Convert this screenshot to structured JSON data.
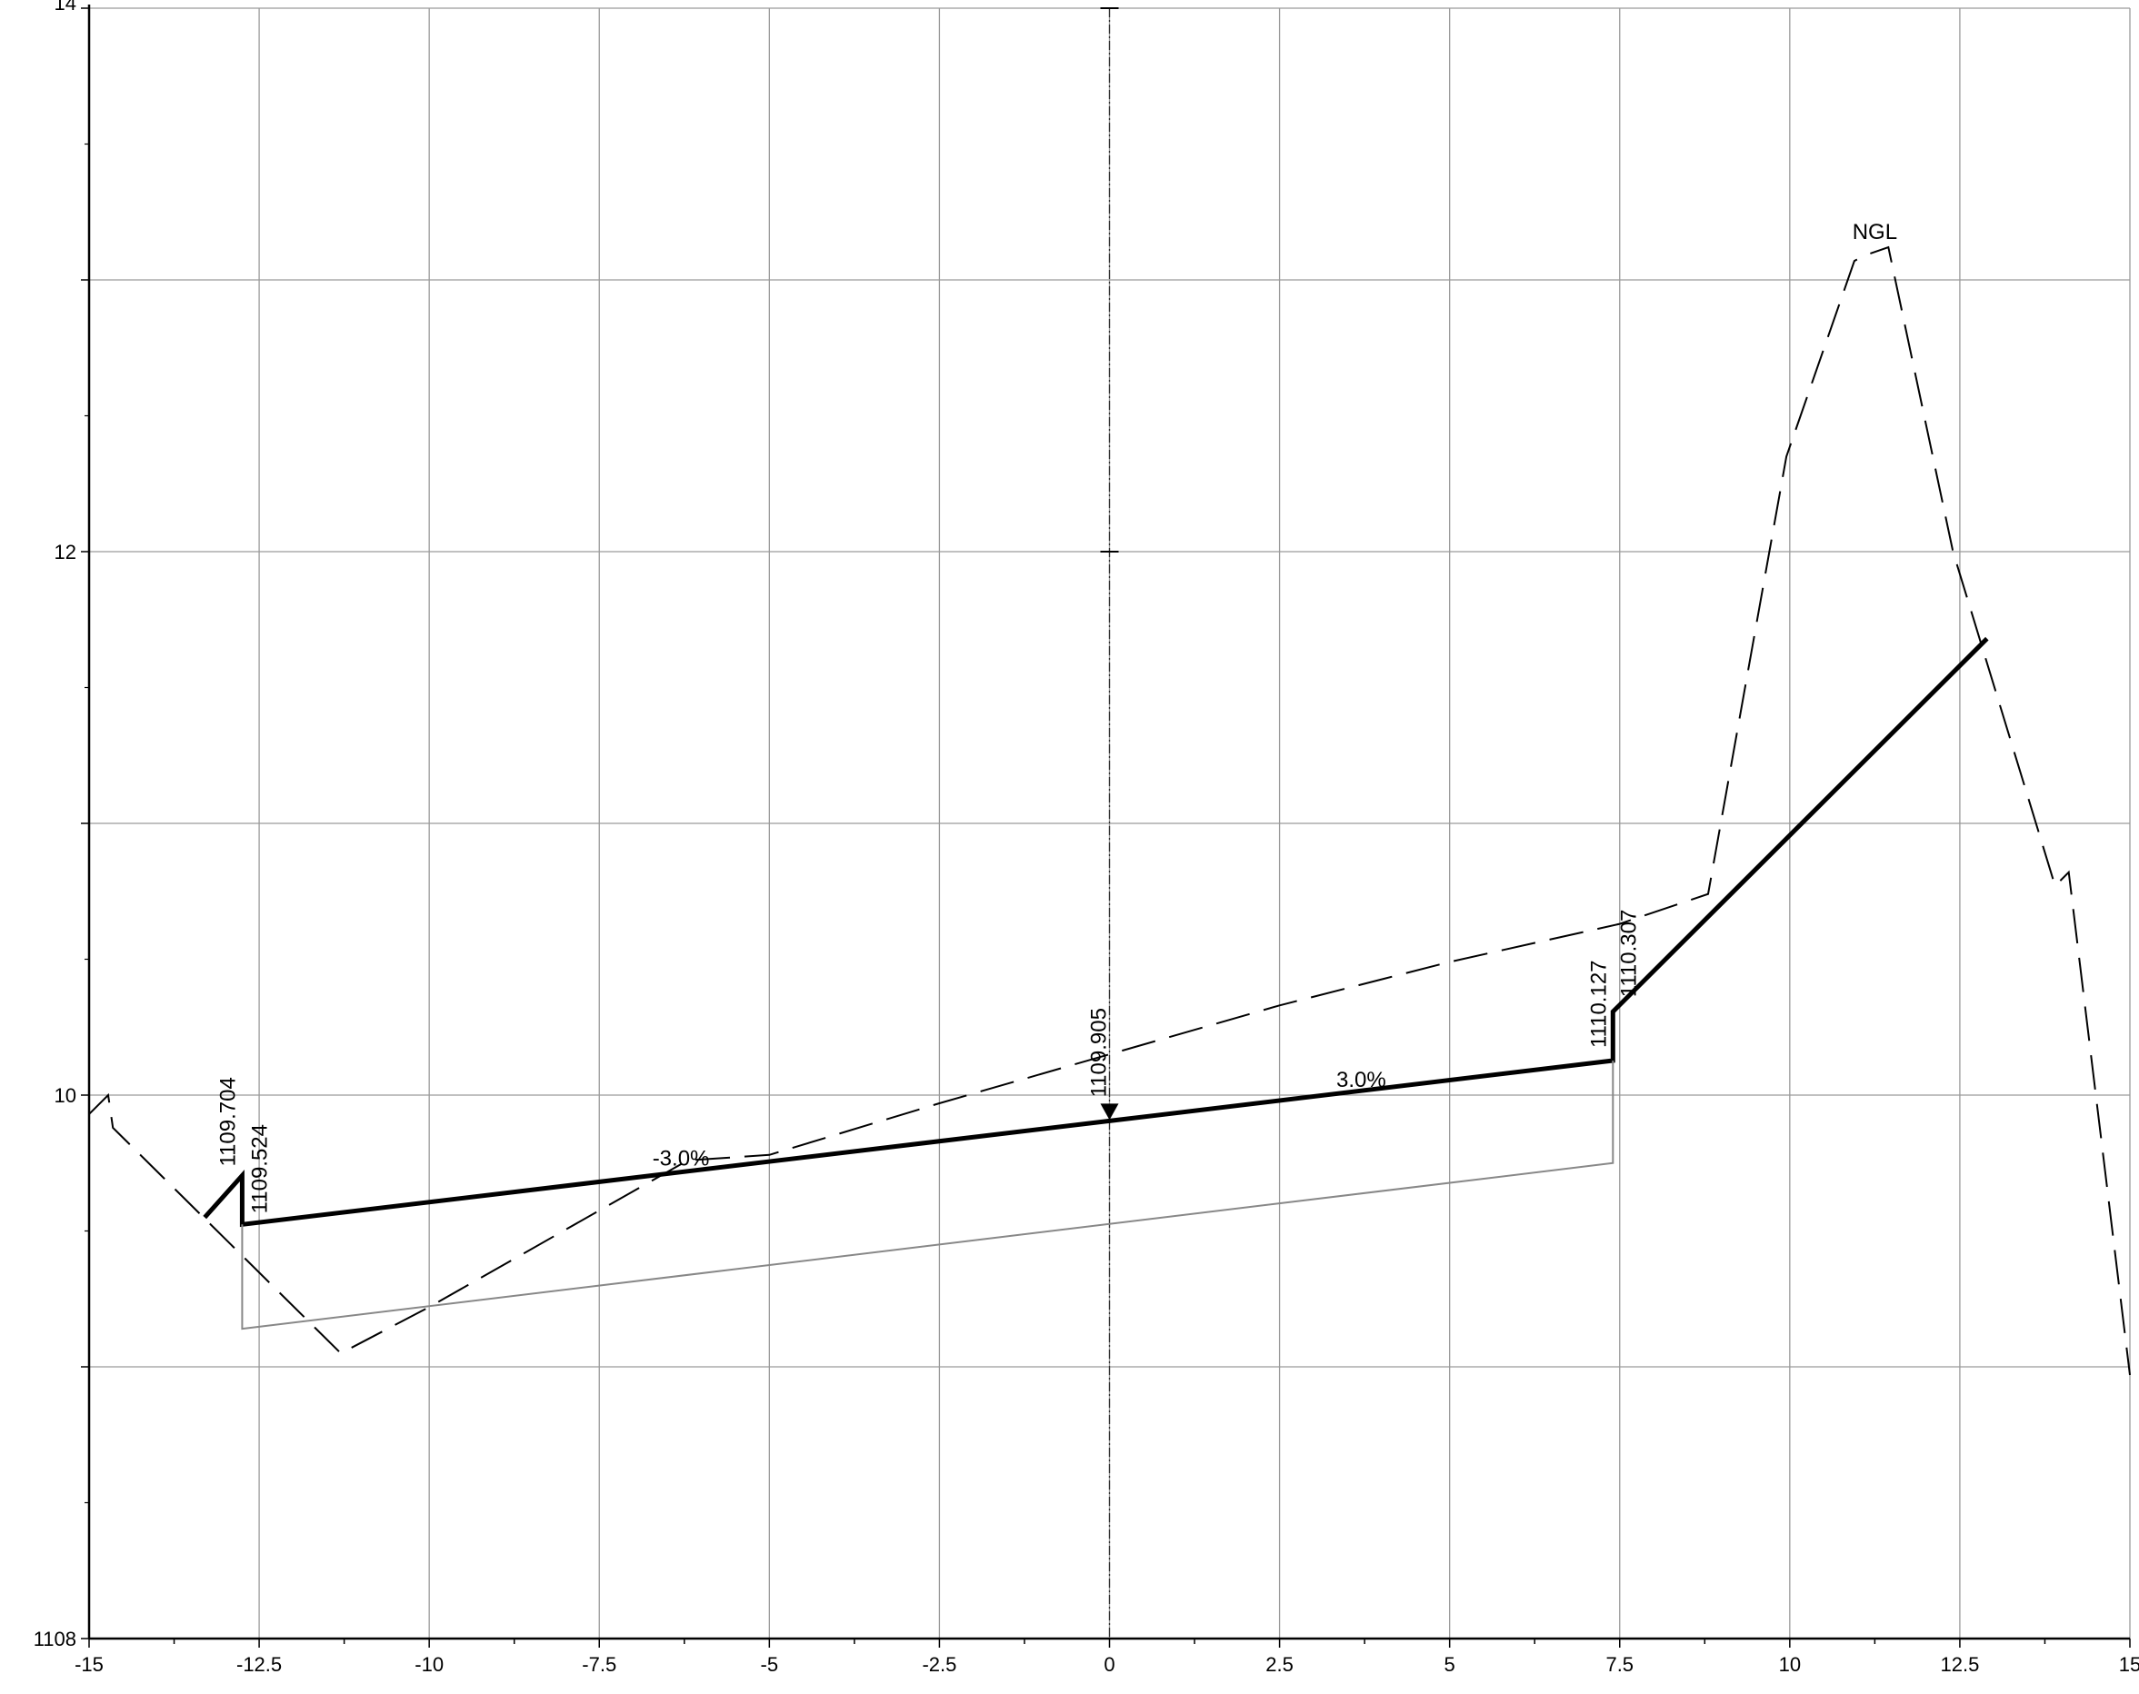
{
  "chart_data": {
    "type": "line",
    "title": "",
    "xlabel": "",
    "ylabel": "",
    "xlim": [
      -15,
      15
    ],
    "ylim": [
      1108,
      1114
    ],
    "x_ticks": [
      -15,
      -12.5,
      -10,
      -7.5,
      -5,
      -2.5,
      0,
      2.5,
      5,
      7.5,
      10,
      12.5,
      15
    ],
    "x_tick_labels": [
      "-15",
      "-12.5",
      "-10",
      "-7.5",
      "-5",
      "-2.5",
      "0",
      "2.5",
      "5",
      "7.5",
      "10",
      "12.5",
      "15"
    ],
    "y_ticks": [
      1108,
      1109,
      1110,
      1111,
      1112,
      1113,
      1114
    ],
    "y_tick_labels": [
      {
        "value": 1108,
        "label": "1108"
      },
      {
        "value": 1110,
        "label": "10"
      },
      {
        "value": 1112,
        "label": "12"
      },
      {
        "value": 1114,
        "label": "14"
      }
    ],
    "grid": true,
    "series": [
      {
        "name": "NGL",
        "style": "dashed",
        "color": "#000000",
        "points": [
          [
            -15,
            1109.93
          ],
          [
            -14.72,
            1110.0
          ],
          [
            -14.65,
            1109.88
          ],
          [
            -11.3,
            1109.05
          ],
          [
            -10.0,
            1109.22
          ],
          [
            -6.2,
            1109.76
          ],
          [
            -5.0,
            1109.78
          ],
          [
            -2.5,
            1109.97
          ],
          [
            0.0,
            1110.15
          ],
          [
            2.5,
            1110.33
          ],
          [
            5.0,
            1110.49
          ],
          [
            7.5,
            1110.63
          ],
          [
            8.8,
            1110.74
          ],
          [
            9.95,
            1112.35
          ],
          [
            10.95,
            1113.07
          ],
          [
            11.1,
            1113.09
          ],
          [
            11.45,
            1113.12
          ],
          [
            12.4,
            1112.0
          ],
          [
            13.9,
            1110.77
          ],
          [
            14.1,
            1110.82
          ],
          [
            15.0,
            1108.97
          ]
        ]
      },
      {
        "name": "",
        "style": "solid-thick",
        "color": "#000000",
        "points": [
          [
            -13.3,
            1109.55
          ],
          [
            -12.75,
            1109.704
          ],
          [
            -12.75,
            1109.524
          ],
          [
            0.0,
            1109.905
          ],
          [
            7.4,
            1110.127
          ],
          [
            7.4,
            1110.307
          ],
          [
            12.9,
            1111.68
          ]
        ]
      },
      {
        "name": "",
        "style": "solid-thin",
        "color": "#888888",
        "points": [
          [
            -12.75,
            1109.524
          ],
          [
            -12.75,
            1109.14
          ],
          [
            7.4,
            1109.75
          ],
          [
            7.4,
            1110.127
          ]
        ]
      }
    ],
    "centerline": {
      "x": 0,
      "style": "dash-dot"
    },
    "annotations": [
      {
        "text": "1109.704",
        "x": -12.75,
        "y": 1109.704,
        "rotation": -90
      },
      {
        "text": "1109.524",
        "x": -12.75,
        "y": 1109.524,
        "rotation": -90
      },
      {
        "text": "1109.905",
        "x": 0,
        "y": 1109.905,
        "rotation": -90
      },
      {
        "text": "1110.127",
        "x": 7.4,
        "y": 1110.127,
        "rotation": -90
      },
      {
        "text": "1110.307",
        "x": 7.4,
        "y": 1110.307,
        "rotation": -90
      },
      {
        "text": "-3.0%",
        "x": -6.3,
        "y": 1109.74,
        "rotation": 0
      },
      {
        "text": "3.0%",
        "x": 3.7,
        "y": 1110.03,
        "rotation": 0
      },
      {
        "text": "NGL",
        "x": 11.25,
        "y": 1113.15,
        "rotation": 0
      }
    ]
  }
}
